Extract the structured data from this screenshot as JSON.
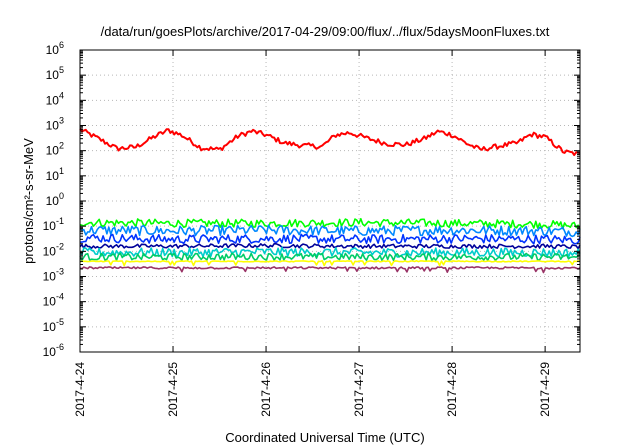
{
  "chart_data": {
    "type": "line",
    "title": "/data/run/goesPlots/archive/2017-04-29/09:00/flux/../flux/5daysMoonFluxes.txt",
    "xlabel": "Coordinated Universal Time (UTC)",
    "ylabel": "protons/cm²-s-sr-MeV",
    "y_scale": "log",
    "ylim": [
      1e-06,
      1000000.0
    ],
    "y_ticks": [
      {
        "value": 1e-06,
        "base": "10",
        "exp": "-6"
      },
      {
        "value": 1e-05,
        "base": "10",
        "exp": "-5"
      },
      {
        "value": 0.0001,
        "base": "10",
        "exp": "-4"
      },
      {
        "value": 0.001,
        "base": "10",
        "exp": "-3"
      },
      {
        "value": 0.01,
        "base": "10",
        "exp": "-2"
      },
      {
        "value": 0.1,
        "base": "10",
        "exp": "-1"
      },
      {
        "value": 1.0,
        "base": "10",
        "exp": "0"
      },
      {
        "value": 10.0,
        "base": "10",
        "exp": "1"
      },
      {
        "value": 100.0,
        "base": "10",
        "exp": "2"
      },
      {
        "value": 1000.0,
        "base": "10",
        "exp": "3"
      },
      {
        "value": 10000.0,
        "base": "10",
        "exp": "4"
      },
      {
        "value": 100000.0,
        "base": "10",
        "exp": "5"
      },
      {
        "value": 1000000.0,
        "base": "10",
        "exp": "6"
      }
    ],
    "xlim": [
      "2017-04-24 00:00",
      "2017-04-29 09:00"
    ],
    "x_ticks": [
      "2017-4-24",
      "2017-4-25",
      "2017-4-26",
      "2017-4-27",
      "2017-4-28",
      "2017-4-29"
    ],
    "grid": true,
    "legend": "none",
    "series": [
      {
        "color": "#ff0000",
        "values": [
          [
            0,
            700
          ],
          [
            0.2,
            300
          ],
          [
            0.4,
            120
          ],
          [
            0.6,
            140
          ],
          [
            0.8,
            360
          ],
          [
            0.95,
            650
          ],
          [
            1.1,
            400
          ],
          [
            1.3,
            130
          ],
          [
            1.5,
            110
          ],
          [
            1.7,
            380
          ],
          [
            1.85,
            600
          ],
          [
            2.0,
            420
          ],
          [
            2.2,
            200
          ],
          [
            2.4,
            160
          ],
          [
            2.6,
            145
          ],
          [
            2.75,
            420
          ],
          [
            2.9,
            520
          ],
          [
            3.1,
            300
          ],
          [
            3.3,
            190
          ],
          [
            3.5,
            170
          ],
          [
            3.7,
            300
          ],
          [
            3.85,
            580
          ],
          [
            4.0,
            430
          ],
          [
            4.15,
            200
          ],
          [
            4.3,
            110
          ],
          [
            4.5,
            150
          ],
          [
            4.7,
            200
          ],
          [
            4.85,
            450
          ],
          [
            5.0,
            350
          ],
          [
            5.2,
            90
          ],
          [
            5.375,
            70
          ]
        ]
      },
      {
        "color": "#00ff00",
        "values": [
          [
            0,
            0.14
          ],
          [
            1,
            0.13
          ],
          [
            2,
            0.13
          ],
          [
            3,
            0.14
          ],
          [
            4,
            0.13
          ],
          [
            5,
            0.12
          ],
          [
            5.375,
            0.1
          ]
        ]
      },
      {
        "color": "#0088ff",
        "values": [
          [
            0,
            0.07
          ],
          [
            1,
            0.065
          ],
          [
            2,
            0.07
          ],
          [
            3,
            0.065
          ],
          [
            4,
            0.07
          ],
          [
            5,
            0.065
          ],
          [
            5.375,
            0.06
          ]
        ]
      },
      {
        "color": "#0033ff",
        "values": [
          [
            0,
            0.035
          ],
          [
            1,
            0.03
          ],
          [
            2,
            0.032
          ],
          [
            3,
            0.03
          ],
          [
            4,
            0.032
          ],
          [
            5,
            0.03
          ],
          [
            5.375,
            0.028
          ]
        ]
      },
      {
        "color": "#000099",
        "values": [
          [
            0,
            0.016
          ],
          [
            1,
            0.016
          ],
          [
            2,
            0.017
          ],
          [
            3,
            0.016
          ],
          [
            4,
            0.016
          ],
          [
            5,
            0.016
          ],
          [
            5.375,
            0.015
          ]
        ]
      },
      {
        "color": "#00cccc",
        "values": [
          [
            0,
            0.009
          ],
          [
            1,
            0.009
          ],
          [
            2,
            0.0095
          ],
          [
            3,
            0.009
          ],
          [
            4,
            0.009
          ],
          [
            5,
            0.009
          ],
          [
            5.375,
            0.0085
          ]
        ]
      },
      {
        "color": "#00cc66",
        "values": [
          [
            0,
            0.006
          ],
          [
            1,
            0.006
          ],
          [
            2,
            0.0062
          ],
          [
            3,
            0.006
          ],
          [
            4,
            0.006
          ],
          [
            5,
            0.006
          ],
          [
            5.375,
            0.0058
          ]
        ]
      },
      {
        "color": "#ffff00",
        "values": [
          [
            0,
            0.004
          ],
          [
            1,
            0.004
          ],
          [
            2,
            0.004
          ],
          [
            3,
            0.004
          ],
          [
            4,
            0.004
          ],
          [
            5,
            0.004
          ],
          [
            5.375,
            0.004
          ]
        ]
      },
      {
        "color": "#993366",
        "values": [
          [
            0,
            0.0022
          ],
          [
            1,
            0.0022
          ],
          [
            2,
            0.0022
          ],
          [
            3,
            0.0022
          ],
          [
            4,
            0.0022
          ],
          [
            5,
            0.0022
          ],
          [
            5.375,
            0.0022
          ]
        ]
      }
    ]
  }
}
